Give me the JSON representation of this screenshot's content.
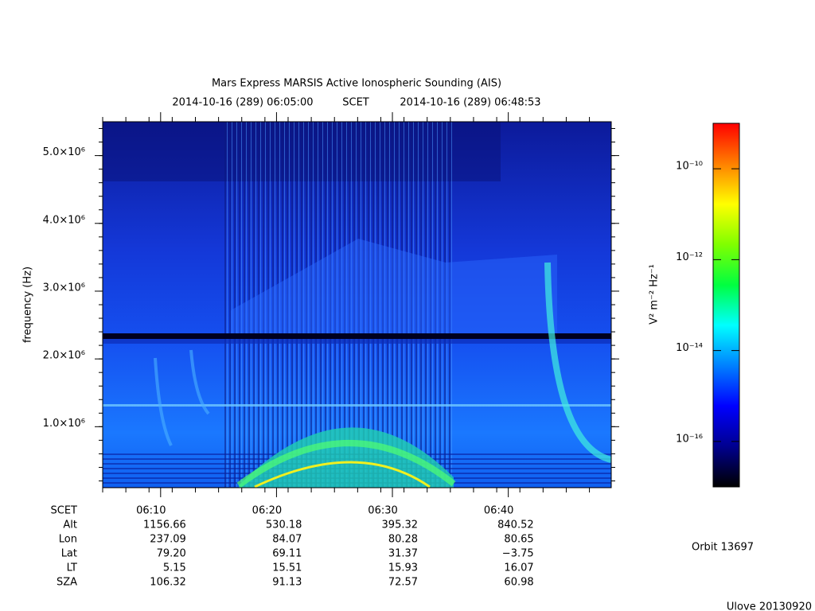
{
  "chart_data": {
    "type": "spectrogram",
    "title": "Mars Express MARSIS Active Ionospheric Sounding (AIS)",
    "time_start": "2014-10-16 (289) 06:05:00",
    "time_label": "SCET",
    "time_end": "2014-10-16 (289) 06:48:53",
    "y_label": "frequency (Hz)",
    "ylim": [
      100000,
      5500000
    ],
    "yticks": [
      {
        "value": 1000000,
        "label": "1.0×10⁶"
      },
      {
        "value": 2000000,
        "label": "2.0×10⁶"
      },
      {
        "value": 3000000,
        "label": "3.0×10⁶"
      },
      {
        "value": 4000000,
        "label": "4.0×10⁶"
      },
      {
        "value": 5000000,
        "label": "5.0×10⁶"
      }
    ],
    "xticks": [
      "06:10",
      "06:20",
      "06:30",
      "06:40"
    ],
    "colorbar": {
      "label": "V² m⁻² Hz⁻¹",
      "log_scale": true,
      "zlim": [
        1e-17,
        1e-09
      ],
      "ticks": [
        {
          "value": 1e-16,
          "label": "10⁻¹⁶"
        },
        {
          "value": 1e-14,
          "label": "10⁻¹⁴"
        },
        {
          "value": 1e-12,
          "label": "10⁻¹²"
        },
        {
          "value": 1e-10,
          "label": "10⁻¹⁰"
        }
      ],
      "colormap": [
        "#000000",
        "#00008f",
        "#0000ff",
        "#0080ff",
        "#00ffff",
        "#00ff40",
        "#80ff00",
        "#ffff00",
        "#ff8000",
        "#ff0000"
      ]
    },
    "ephemeris": {
      "labels": [
        "SCET",
        "Alt",
        "Lon",
        "Lat",
        "LT",
        "SZA"
      ],
      "rows": [
        [
          "1156.66",
          "530.18",
          "395.32",
          "840.52"
        ],
        [
          "237.09",
          "84.07",
          "80.28",
          "80.65"
        ],
        [
          "79.20",
          "69.11",
          "31.37",
          "−3.75"
        ],
        [
          "5.15",
          "15.51",
          "15.93",
          "16.07"
        ],
        [
          "106.32",
          "91.13",
          "72.57",
          "60.98"
        ]
      ]
    },
    "orbit": "Orbit 13697",
    "footer": "Ulove 20130920"
  }
}
